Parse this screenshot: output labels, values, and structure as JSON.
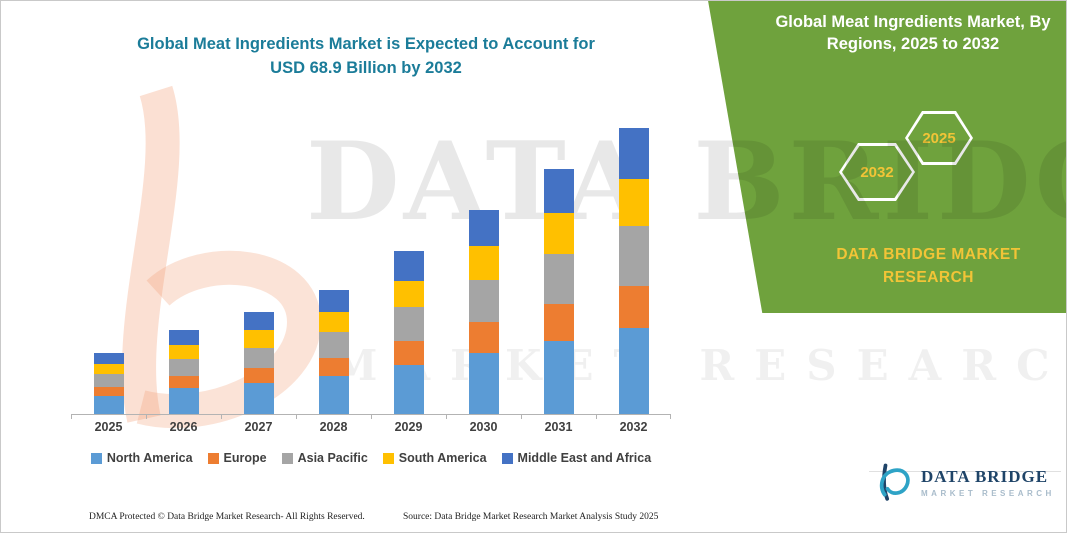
{
  "chart_title": {
    "line1": "Global Meat Ingredients Market is Expected to Account for",
    "line2": "USD 68.9 Billion by 2032"
  },
  "side_panel": {
    "title": "Global Meat Ingredients Market, By Regions, 2025 to 2032",
    "hexagons": [
      {
        "label": "2032"
      },
      {
        "label": "2025"
      }
    ],
    "brand_line1": "DATA BRIDGE MARKET",
    "brand_line2": "RESEARCH",
    "colors": {
      "panel_green": "#6FA23D",
      "accent_yellow": "#F2C437"
    }
  },
  "watermark": {
    "line1": "DATA BRIDGE",
    "line2": "MARKET RESEARCH"
  },
  "chart_data": {
    "type": "bar",
    "stacked": true,
    "title": "Global Meat Ingredients Market is Expected to Account for USD 68.9 Billion by 2032",
    "unit": "USD Billion",
    "categories": [
      "2025",
      "2026",
      "2027",
      "2028",
      "2029",
      "2030",
      "2031",
      "2032"
    ],
    "series": [
      {
        "name": "North America",
        "color": "#5B9BD5",
        "values": [
          4.4,
          6.2,
          7.4,
          9.1,
          11.8,
          14.8,
          17.7,
          20.7
        ]
      },
      {
        "name": "Europe",
        "color": "#ED7D31",
        "values": [
          2.2,
          3.0,
          3.7,
          4.4,
          5.9,
          7.4,
          8.9,
          10.3
        ]
      },
      {
        "name": "Asia Pacific",
        "color": "#A5A5A5",
        "values": [
          3.0,
          4.2,
          4.9,
          6.2,
          8.1,
          10.1,
          12.1,
          14.3
        ]
      },
      {
        "name": "South America",
        "color": "#FFC000",
        "values": [
          2.5,
          3.2,
          4.2,
          4.9,
          6.4,
          8.1,
          9.8,
          11.3
        ]
      },
      {
        "name": "Middle East and Africa",
        "color": "#4472C4",
        "values": [
          2.7,
          3.7,
          4.4,
          5.4,
          7.1,
          8.9,
          10.6,
          12.3
        ]
      }
    ],
    "totals_by_year": [
      14.8,
      20.3,
      24.6,
      30.0,
      39.3,
      49.3,
      59.1,
      68.9
    ],
    "ylim": [
      0,
      75
    ],
    "xlabel": "",
    "ylabel": "",
    "gridlines": false,
    "legend_position": "bottom"
  },
  "footer": {
    "dmca": "DMCA Protected © Data Bridge Market Research-  All Rights Reserved.",
    "source": "Source: Data Bridge Market Research  Market Analysis Study 2025"
  },
  "logo": {
    "name": "DATA BRIDGE",
    "subtitle": "MARKET RESEARCH"
  }
}
